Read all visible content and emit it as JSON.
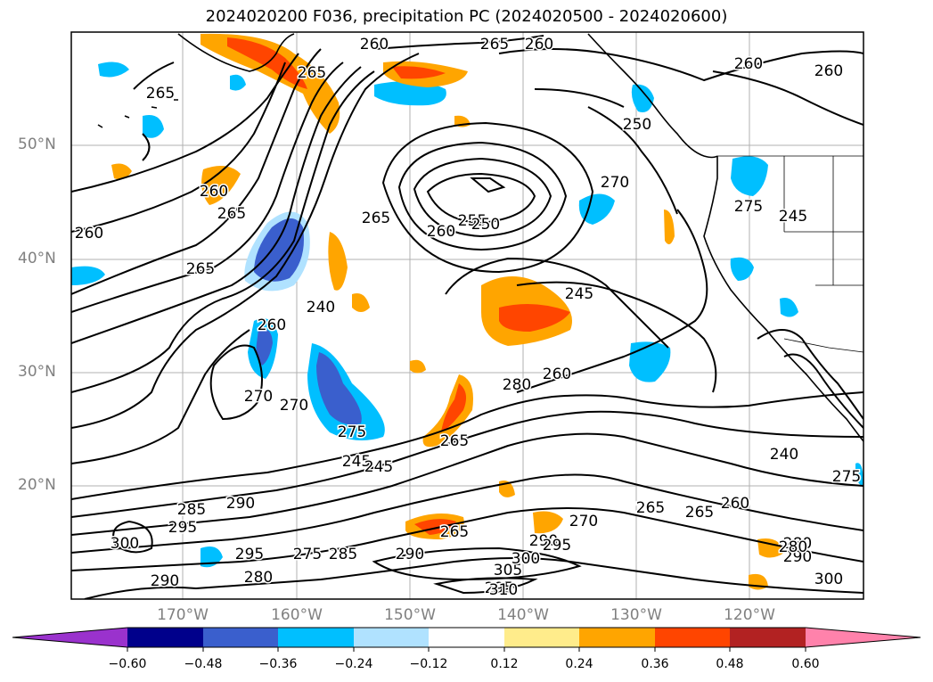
{
  "title": "2024020200 F036, precipitation PC (2024020500 - 2024020600)",
  "lat_labels": [
    "50°N",
    "40°N",
    "30°N",
    "20°N"
  ],
  "lon_labels": [
    "170°W",
    "160°W",
    "150°W",
    "140°W",
    "130°W",
    "120°W"
  ],
  "colorbar": {
    "ticks": [
      "−0.60",
      "−0.48",
      "−0.36",
      "−0.24",
      "−0.12",
      "0.12",
      "0.24",
      "0.36",
      "0.48",
      "0.60"
    ],
    "colors": [
      "#9a32cd",
      "#00008b",
      "#3a5fcd",
      "#00bfff",
      "#b0e2ff",
      "#ffffff",
      "#ffec8b",
      "#ffa500",
      "#ff4500",
      "#b22222",
      "#ff82ab"
    ]
  },
  "contour_labels": [
    "260",
    "265",
    "260",
    "265",
    "260",
    "260",
    "250",
    "265",
    "260",
    "255",
    "250",
    "260",
    "265",
    "260",
    "265",
    "270",
    "275",
    "245",
    "245",
    "265",
    "240",
    "260",
    "270",
    "270",
    "275",
    "280",
    "260",
    "265",
    "245",
    "245",
    "290",
    "285",
    "295",
    "300",
    "295",
    "275",
    "285",
    "290",
    "265",
    "290",
    "295",
    "270",
    "265",
    "265",
    "260",
    "240",
    "280",
    "280",
    "290",
    "295",
    "300",
    "305",
    "300",
    "310",
    "290",
    "280",
    "275"
  ]
}
